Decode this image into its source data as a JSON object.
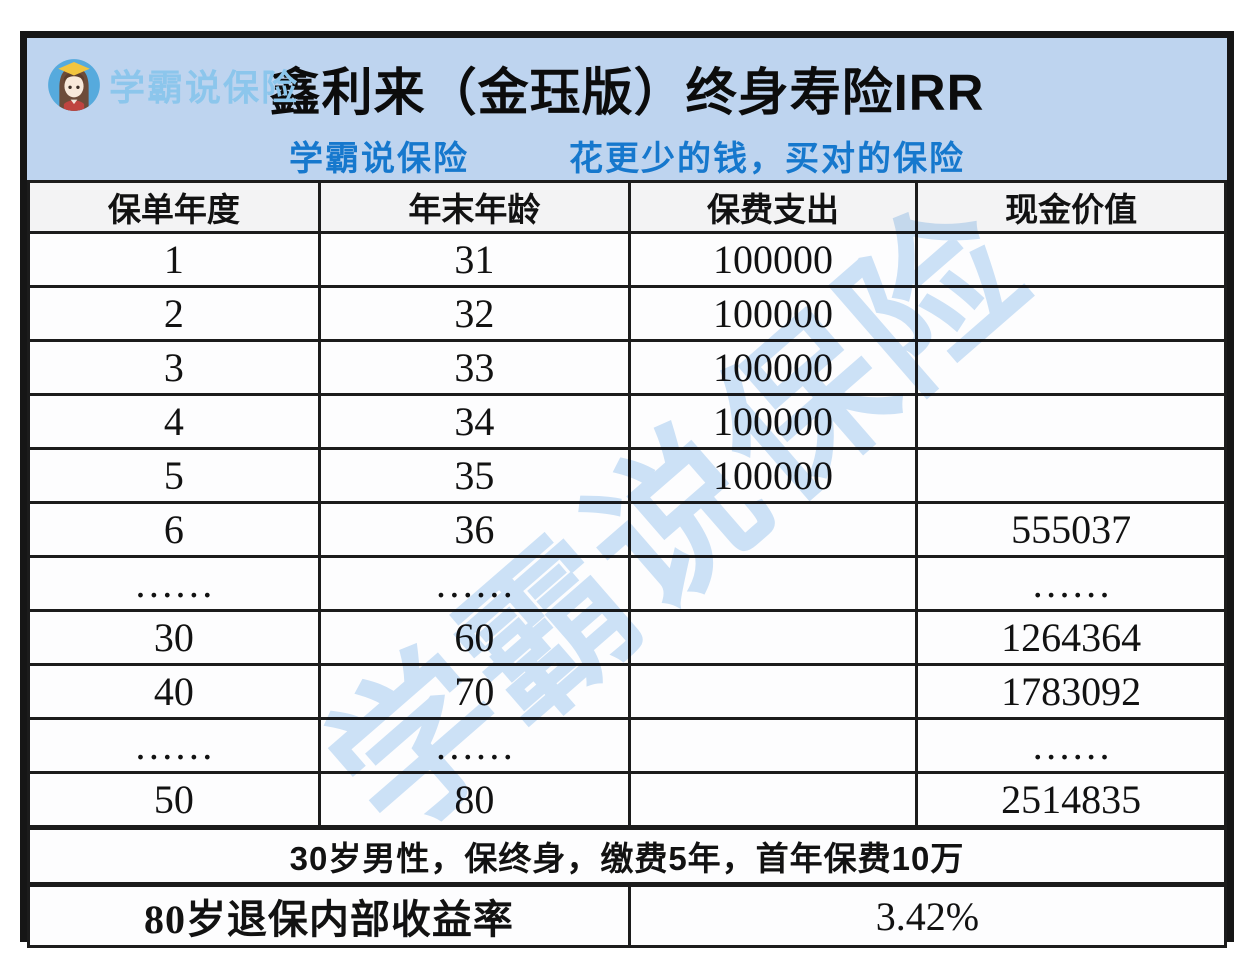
{
  "brand": {
    "name": "学霸说保险",
    "avatar": "girl-graduate-avatar"
  },
  "header": {
    "title": "鑫利来（金珏版）终身寿险IRR",
    "subtitle_left": "学霸说保险",
    "subtitle_right": "花更少的钱，买对的保险"
  },
  "watermark": "学霸说保险",
  "chart_data": {
    "type": "table",
    "title": "鑫利来（金珏版）终身寿险IRR",
    "columns": [
      "保单年度",
      "年末年龄",
      "保费支出",
      "现金价值"
    ],
    "rows": [
      [
        "1",
        "31",
        "100000",
        ""
      ],
      [
        "2",
        "32",
        "100000",
        ""
      ],
      [
        "3",
        "33",
        "100000",
        ""
      ],
      [
        "4",
        "34",
        "100000",
        ""
      ],
      [
        "5",
        "35",
        "100000",
        ""
      ],
      [
        "6",
        "36",
        "",
        "555037"
      ],
      [
        "……",
        "……",
        "",
        "……"
      ],
      [
        "30",
        "60",
        "",
        "1264364"
      ],
      [
        "40",
        "70",
        "",
        "1783092"
      ],
      [
        "……",
        "……",
        "",
        "……"
      ],
      [
        "50",
        "80",
        "",
        "2514835"
      ]
    ],
    "note": "30岁男性，保终身，缴费5年，首年保费10万",
    "irr_label": "80岁退保内部收益率",
    "irr_value": "3.42%"
  },
  "colors": {
    "band_bg": "#bed4ef",
    "subtitle_blue": "#1678cd",
    "brand_text": "#8cc6ec",
    "header_row_bg": "#f3f3f4",
    "cell_bg": "#fdfdfe",
    "irr_label_bg": "#bed7f2",
    "grid_line": "#1c1c1c",
    "watermark_blue": "#a6ccf0",
    "avatar_circle": "#56aadd",
    "avatar_cap": "#f2c53e"
  }
}
